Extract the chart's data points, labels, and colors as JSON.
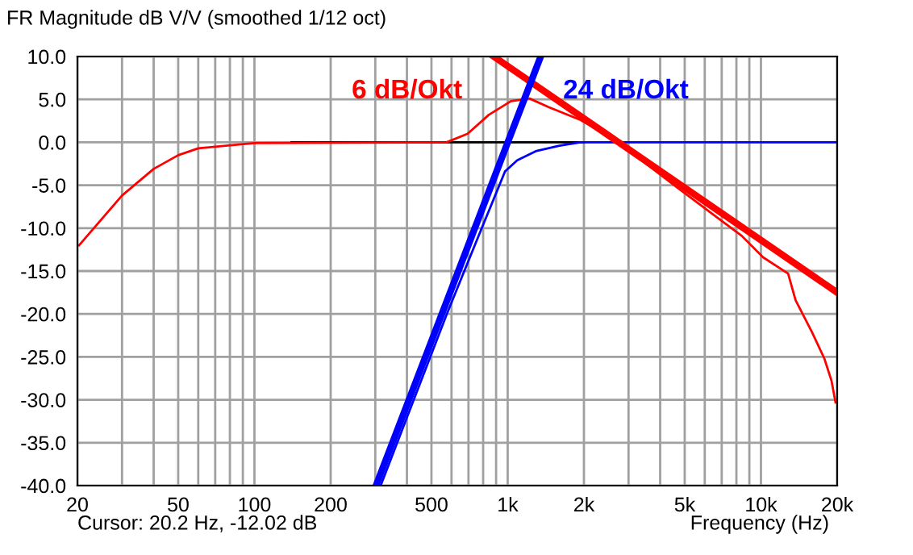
{
  "chart_data": {
    "type": "line",
    "title": "FR Magnitude dB V/V (smoothed 1/12 oct)",
    "xlabel": "Frequency (Hz)",
    "annotations": [
      "Cursor: 20.2 Hz, -12.02 dB"
    ],
    "log": "x",
    "grid": true,
    "legend": false,
    "marker": "none",
    "line_style": "solid",
    "xlim": [
      20,
      20000
    ],
    "ylim": [
      -40,
      10
    ],
    "xticks": [
      20,
      {
        "value": 30,
        "label": null
      },
      {
        "value": 40,
        "label": null
      },
      50,
      {
        "value": 60,
        "label": null
      },
      {
        "value": 70,
        "label": null
      },
      {
        "value": 80,
        "label": null
      },
      {
        "value": 90,
        "label": null
      },
      100,
      200,
      {
        "value": 300,
        "label": null
      },
      {
        "value": 400,
        "label": null
      },
      500,
      {
        "value": 600,
        "label": null
      },
      {
        "value": 700,
        "label": null
      },
      {
        "value": 800,
        "label": null
      },
      {
        "value": 900,
        "label": null
      },
      {
        "value": 1000,
        "label": "1k"
      },
      {
        "value": 2000,
        "label": "2k"
      },
      {
        "value": 3000,
        "label": null
      },
      {
        "value": 4000,
        "label": null
      },
      {
        "value": 5000,
        "label": "5k"
      },
      {
        "value": 6000,
        "label": null
      },
      {
        "value": 7000,
        "label": null
      },
      {
        "value": 8000,
        "label": null
      },
      {
        "value": 9000,
        "label": null
      },
      {
        "value": 10000,
        "label": "10k"
      },
      {
        "value": 20000,
        "label": "20k"
      }
    ],
    "yticks": [
      {
        "value": 10,
        "label": "10.0"
      },
      {
        "value": 5,
        "label": "5.0"
      },
      {
        "value": 0,
        "label": "0.0"
      },
      {
        "value": -5,
        "label": "-5.0"
      },
      {
        "value": -10,
        "label": "-10.0"
      },
      {
        "value": -15,
        "label": "-15.0"
      },
      {
        "value": -20,
        "label": "-20.0"
      },
      {
        "value": -25,
        "label": "-25.0"
      },
      {
        "value": -30,
        "label": "-30.0"
      },
      {
        "value": -35,
        "label": "-35.0"
      },
      {
        "value": -40,
        "label": "-40.0"
      }
    ],
    "series": [
      {
        "color": "#000000",
        "x": [
          140,
          2000
        ],
        "values": [
          0,
          0
        ]
      },
      {
        "color": "#ff0000",
        "x": [
          20.3,
          30,
          40,
          50,
          60,
          77,
          100,
          574,
          695,
          842,
          1030,
          1220,
          1450,
          1940,
          2600,
          3480,
          4690,
          6270,
          8400,
          10200,
          12800,
          13700,
          15900,
          17800,
          19000,
          19700
        ],
        "values": [
          -12,
          -6.2,
          -3.1,
          -1.5,
          -0.7,
          -0.4,
          -0.1,
          0,
          1.0,
          3.2,
          4.8,
          5.1,
          4.1,
          2.6,
          0.4,
          -2.4,
          -5.3,
          -8.1,
          -10.9,
          -13.4,
          -15.3,
          -18.4,
          -22.1,
          -25.2,
          -27.8,
          -30.3
        ]
      },
      {
        "color": "#0000ff",
        "x": [
          315,
          575,
          790,
          976,
          1090,
          1300,
          1600,
          1940,
          20000
        ],
        "values": [
          -40,
          -20,
          -10,
          -3.4,
          -2.1,
          -1.0,
          -0.4,
          0,
          0
        ]
      },
      {
        "name": "6 dB/Okt",
        "color": "#ff0000",
        "x": [
          880,
          20000
        ],
        "values": [
          10,
          -17.5
        ]
      },
      {
        "name": "24 dB/Okt",
        "color": "#0000ff",
        "x": [
          302,
          1350
        ],
        "values": [
          -40,
          10
        ]
      }
    ]
  }
}
